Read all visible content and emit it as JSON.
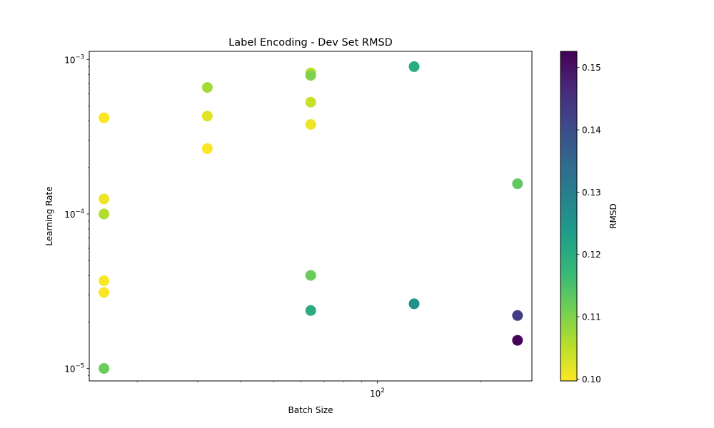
{
  "chart_data": {
    "type": "scatter",
    "title": "Label Encoding - Dev Set RMSD",
    "xlabel": "Batch Size",
    "ylabel": "Learning Rate",
    "xscale": "log",
    "yscale": "log",
    "xlim": [
      14.5,
      282
    ],
    "ylim": [
      8.3e-06,
      0.00113
    ],
    "x_major_ticks": [
      {
        "value": 100,
        "base": "10",
        "exp": "2"
      }
    ],
    "x_minor_ticks": [
      20,
      30,
      40,
      50,
      60,
      70,
      80,
      90,
      200
    ],
    "y_major_ticks": [
      {
        "value": 1e-05,
        "base": "10",
        "exp": "−5"
      },
      {
        "value": 0.0001,
        "base": "10",
        "exp": "−4"
      },
      {
        "value": 0.001,
        "base": "10",
        "exp": "−3"
      }
    ],
    "grid": false,
    "colorbar": {
      "label": "RMSD",
      "colormap": "viridis",
      "range": [
        0.0997,
        0.1526
      ],
      "ticks": [
        "0.10",
        "0.11",
        "0.12",
        "0.13",
        "0.14",
        "0.15"
      ],
      "tick_values": [
        0.1,
        0.11,
        0.12,
        0.13,
        0.14,
        0.15
      ]
    },
    "points": [
      {
        "x": 16,
        "y": 0.00042,
        "c": 0.1
      },
      {
        "x": 16,
        "y": 0.000125,
        "c": 0.101
      },
      {
        "x": 16,
        "y": 0.0001,
        "c": 0.106
      },
      {
        "x": 16,
        "y": 3.7e-05,
        "c": 0.1
      },
      {
        "x": 16,
        "y": 3.1e-05,
        "c": 0.1
      },
      {
        "x": 16,
        "y": 1e-05,
        "c": 0.112
      },
      {
        "x": 32,
        "y": 0.00066,
        "c": 0.107
      },
      {
        "x": 32,
        "y": 0.00043,
        "c": 0.102
      },
      {
        "x": 32,
        "y": 0.000265,
        "c": 0.1
      },
      {
        "x": 64,
        "y": 0.00082,
        "c": 0.105
      },
      {
        "x": 64,
        "y": 0.00079,
        "c": 0.11
      },
      {
        "x": 64,
        "y": 0.00053,
        "c": 0.104
      },
      {
        "x": 64,
        "y": 0.00038,
        "c": 0.101
      },
      {
        "x": 64,
        "y": 4e-05,
        "c": 0.112
      },
      {
        "x": 64,
        "y": 2.37e-05,
        "c": 0.12
      },
      {
        "x": 128,
        "y": 0.0009,
        "c": 0.12
      },
      {
        "x": 128,
        "y": 2.62e-05,
        "c": 0.126
      },
      {
        "x": 256,
        "y": 0.000157,
        "c": 0.113
      },
      {
        "x": 256,
        "y": 2.2e-05,
        "c": 0.143
      },
      {
        "x": 256,
        "y": 1.52e-05,
        "c": 0.152
      }
    ]
  }
}
